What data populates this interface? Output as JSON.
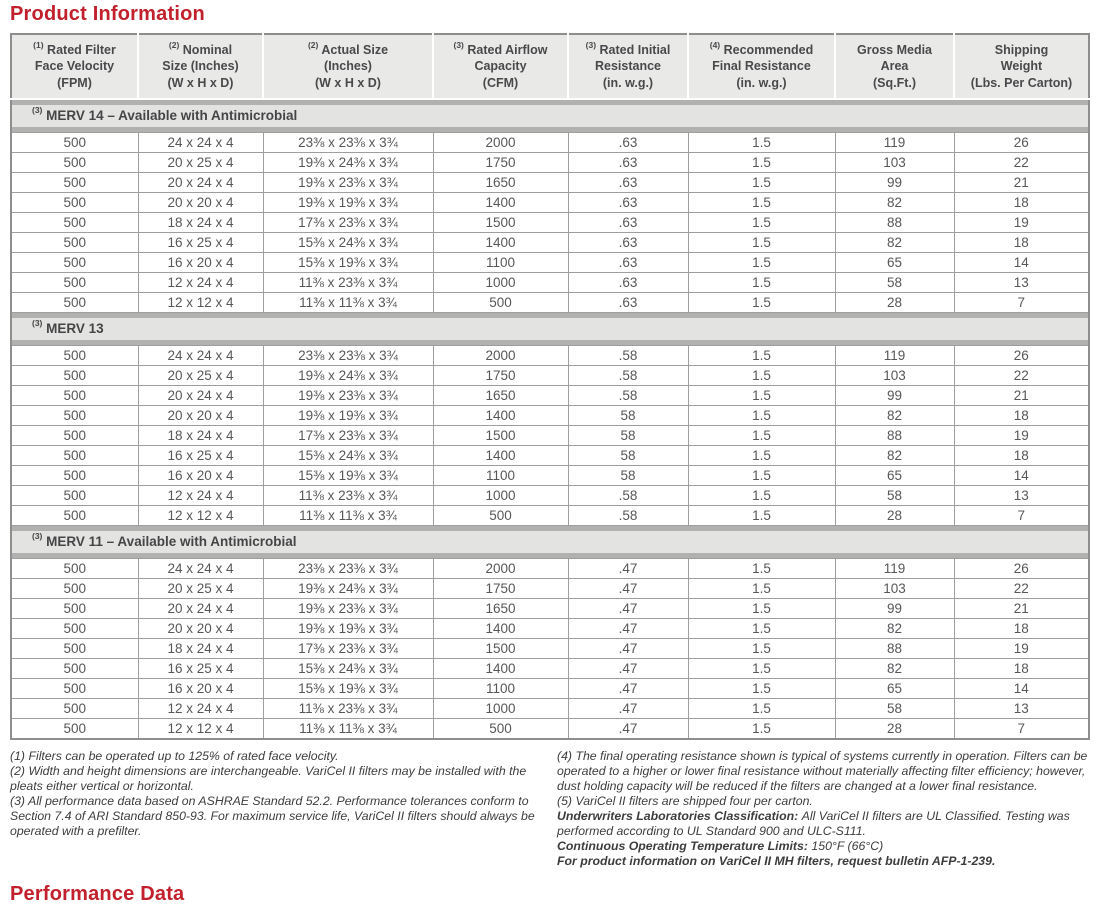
{
  "page": {
    "title": "Product Information",
    "footer_title": "Performance Data"
  },
  "table": {
    "headers": [
      {
        "sup": "(1)",
        "lines": [
          "Rated Filter",
          "Face Velocity",
          "(FPM)"
        ]
      },
      {
        "sup": "(2)",
        "lines": [
          "Nominal",
          "Size (Inches)",
          "(W x H x D)"
        ]
      },
      {
        "sup": "(2)",
        "lines": [
          "Actual Size",
          "(Inches)",
          "(W x H x D)"
        ]
      },
      {
        "sup": "(3)",
        "lines": [
          "Rated Airflow",
          "Capacity",
          "(CFM)"
        ]
      },
      {
        "sup": "(3)",
        "lines": [
          "Rated Initial",
          "Resistance",
          "(in. w.g.)"
        ]
      },
      {
        "sup": "(4)",
        "lines": [
          "Recommended",
          "Final Resistance",
          "(in. w.g.)"
        ]
      },
      {
        "sup": "",
        "lines": [
          "Gross Media",
          "Area",
          "(Sq.Ft.)"
        ]
      },
      {
        "sup": "",
        "lines": [
          "Shipping",
          "Weight",
          "(Lbs. Per Carton)"
        ]
      }
    ],
    "sections": [
      {
        "sup": "(3)",
        "title": "MERV 14 – Available with Antimicrobial",
        "rows": [
          [
            "500",
            "24 x 24 x 4",
            "23⅜ x 23⅜ x 3¾",
            "2000",
            ".63",
            "1.5",
            "119",
            "26"
          ],
          [
            "500",
            "20 x 25 x 4",
            "19⅜ x 24⅜ x 3¾",
            "1750",
            ".63",
            "1.5",
            "103",
            "22"
          ],
          [
            "500",
            "20 x 24 x 4",
            "19⅜ x 23⅜ x 3¾",
            "1650",
            ".63",
            "1.5",
            "99",
            "21"
          ],
          [
            "500",
            "20 x 20 x 4",
            "19⅜ x 19⅜ x 3¾",
            "1400",
            ".63",
            "1.5",
            "82",
            "18"
          ],
          [
            "500",
            "18 x 24 x 4",
            "17⅜ x 23⅜ x 3¾",
            "1500",
            ".63",
            "1.5",
            "88",
            "19"
          ],
          [
            "500",
            "16 x 25 x 4",
            "15⅜ x 24⅜ x 3¾",
            "1400",
            ".63",
            "1.5",
            "82",
            "18"
          ],
          [
            "500",
            "16 x 20 x 4",
            "15⅜ x 19⅜ x 3¾",
            "1100",
            ".63",
            "1.5",
            "65",
            "14"
          ],
          [
            "500",
            "12 x 24 x 4",
            "11⅜ x 23⅜ x 3¾",
            "1000",
            ".63",
            "1.5",
            "58",
            "13"
          ],
          [
            "500",
            "12 x 12 x 4",
            "11⅜ x 11⅜ x 3¾",
            "500",
            ".63",
            "1.5",
            "28",
            "7"
          ]
        ]
      },
      {
        "sup": "(3)",
        "title": "MERV 13",
        "rows": [
          [
            "500",
            "24 x 24 x 4",
            "23⅜ x 23⅜ x 3¾",
            "2000",
            ".58",
            "1.5",
            "119",
            "26"
          ],
          [
            "500",
            "20 x 25 x 4",
            "19⅜ x 24⅜ x 3¾",
            "1750",
            ".58",
            "1.5",
            "103",
            "22"
          ],
          [
            "500",
            "20 x 24 x 4",
            "19⅜ x 23⅜ x 3¾",
            "1650",
            ".58",
            "1.5",
            "99",
            "21"
          ],
          [
            "500",
            "20 x 20 x 4",
            "19⅜ x 19⅜ x 3¾",
            "1400",
            "58",
            "1.5",
            "82",
            "18"
          ],
          [
            "500",
            "18 x 24 x 4",
            "17⅜ x 23⅜ x 3¾",
            "1500",
            "58",
            "1.5",
            "88",
            "19"
          ],
          [
            "500",
            "16 x 25 x 4",
            "15⅜ x 24⅜ x 3¾",
            "1400",
            "58",
            "1.5",
            "82",
            "18"
          ],
          [
            "500",
            "16 x 20 x 4",
            "15⅜ x 19⅜ x 3¾",
            "1100",
            "58",
            "1.5",
            "65",
            "14"
          ],
          [
            "500",
            "12 x 24 x 4",
            "11⅜ x 23⅜ x 3¾",
            "1000",
            ".58",
            "1.5",
            "58",
            "13"
          ],
          [
            "500",
            "12 x 12 x 4",
            "11⅜ x 11⅜ x 3¾",
            "500",
            ".58",
            "1.5",
            "28",
            "7"
          ]
        ]
      },
      {
        "sup": "(3)",
        "title": "MERV 11 – Available with Antimicrobial",
        "rows": [
          [
            "500",
            "24 x 24 x 4",
            "23⅜ x 23⅜ x 3¾",
            "2000",
            ".47",
            "1.5",
            "119",
            "26"
          ],
          [
            "500",
            "20 x 25 x 4",
            "19⅜ x 24⅜ x 3¾",
            "1750",
            ".47",
            "1.5",
            "103",
            "22"
          ],
          [
            "500",
            "20 x 24 x 4",
            "19⅜ x 23⅜ x 3¾",
            "1650",
            ".47",
            "1.5",
            "99",
            "21"
          ],
          [
            "500",
            "20 x 20 x 4",
            "19⅜ x 19⅜ x 3¾",
            "1400",
            ".47",
            "1.5",
            "82",
            "18"
          ],
          [
            "500",
            "18 x 24 x 4",
            "17⅜ x 23⅜ x 3¾",
            "1500",
            ".47",
            "1.5",
            "88",
            "19"
          ],
          [
            "500",
            "16 x 25 x 4",
            "15⅜ x 24⅜ x 3¾",
            "1400",
            ".47",
            "1.5",
            "82",
            "18"
          ],
          [
            "500",
            "16 x 20 x 4",
            "15⅜ x 19⅜ x 3¾",
            "1100",
            ".47",
            "1.5",
            "65",
            "14"
          ],
          [
            "500",
            "12 x 24 x 4",
            "11⅜ x 23⅜ x 3¾",
            "1000",
            ".47",
            "1.5",
            "58",
            "13"
          ],
          [
            "500",
            "12 x 12 x 4",
            "11⅜ x 11⅜ x 3¾",
            "500",
            ".47",
            "1.5",
            "28",
            "7"
          ]
        ]
      }
    ]
  },
  "footnotes": {
    "left": [
      [
        {
          "b": false,
          "t": "(1) Filters can be operated up to 125% of rated face velocity."
        }
      ],
      [
        {
          "b": false,
          "t": "(2) Width and height dimensions are interchangeable. VariCel II filters may be installed with the pleats either vertical or horizontal."
        }
      ],
      [
        {
          "b": false,
          "t": "(3) All performance data based on ASHRAE Standard 52.2. Performance tolerances conform to Section 7.4 of ARI Standard 850-93. For maximum service life, VariCel II filters should always be operated with a prefilter."
        }
      ]
    ],
    "right": [
      [
        {
          "b": false,
          "t": "(4) The final operating resistance shown is typical of systems currently in operation. Filters can be operated to a higher or lower final resistance without materially affecting filter efficiency; however, dust holding capacity will be reduced if the filters are changed at a lower final resistance."
        }
      ],
      [
        {
          "b": false,
          "t": "(5) VariCel II filters are shipped four per carton."
        }
      ],
      [
        {
          "b": true,
          "t": "Underwriters Laboratories Classification: "
        },
        {
          "b": false,
          "t": "All VariCel II filters are UL Classified. Testing was performed according to UL Standard 900 and ULC-S111."
        }
      ],
      [
        {
          "b": true,
          "t": "Continuous Operating Temperature Limits: "
        },
        {
          "b": false,
          "t": "150°F (66°C)"
        }
      ],
      [
        {
          "b": true,
          "t": "For product information on VariCel II MH filters, request bulletin AFP-1-239."
        }
      ]
    ]
  },
  "colors": {
    "accent_red": "#c1202c",
    "header_bg": "#e9e9e8",
    "section_bg": "#e3e3e1",
    "band_gray": "#b1b1af",
    "border_gray": "#9e9e9e"
  }
}
